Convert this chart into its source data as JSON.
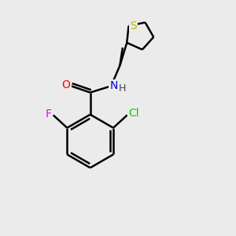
{
  "background_color": "#ebebeb",
  "atom_colors": {
    "O": "#ff0000",
    "N": "#0000ee",
    "F": "#ee00ee",
    "Cl": "#00cc00",
    "S": "#bbbb00",
    "C": "#000000",
    "H": "#444444"
  },
  "bond_color": "#000000",
  "bond_lw": 1.8,
  "dbl_sep": 0.12,
  "font_size": 10
}
